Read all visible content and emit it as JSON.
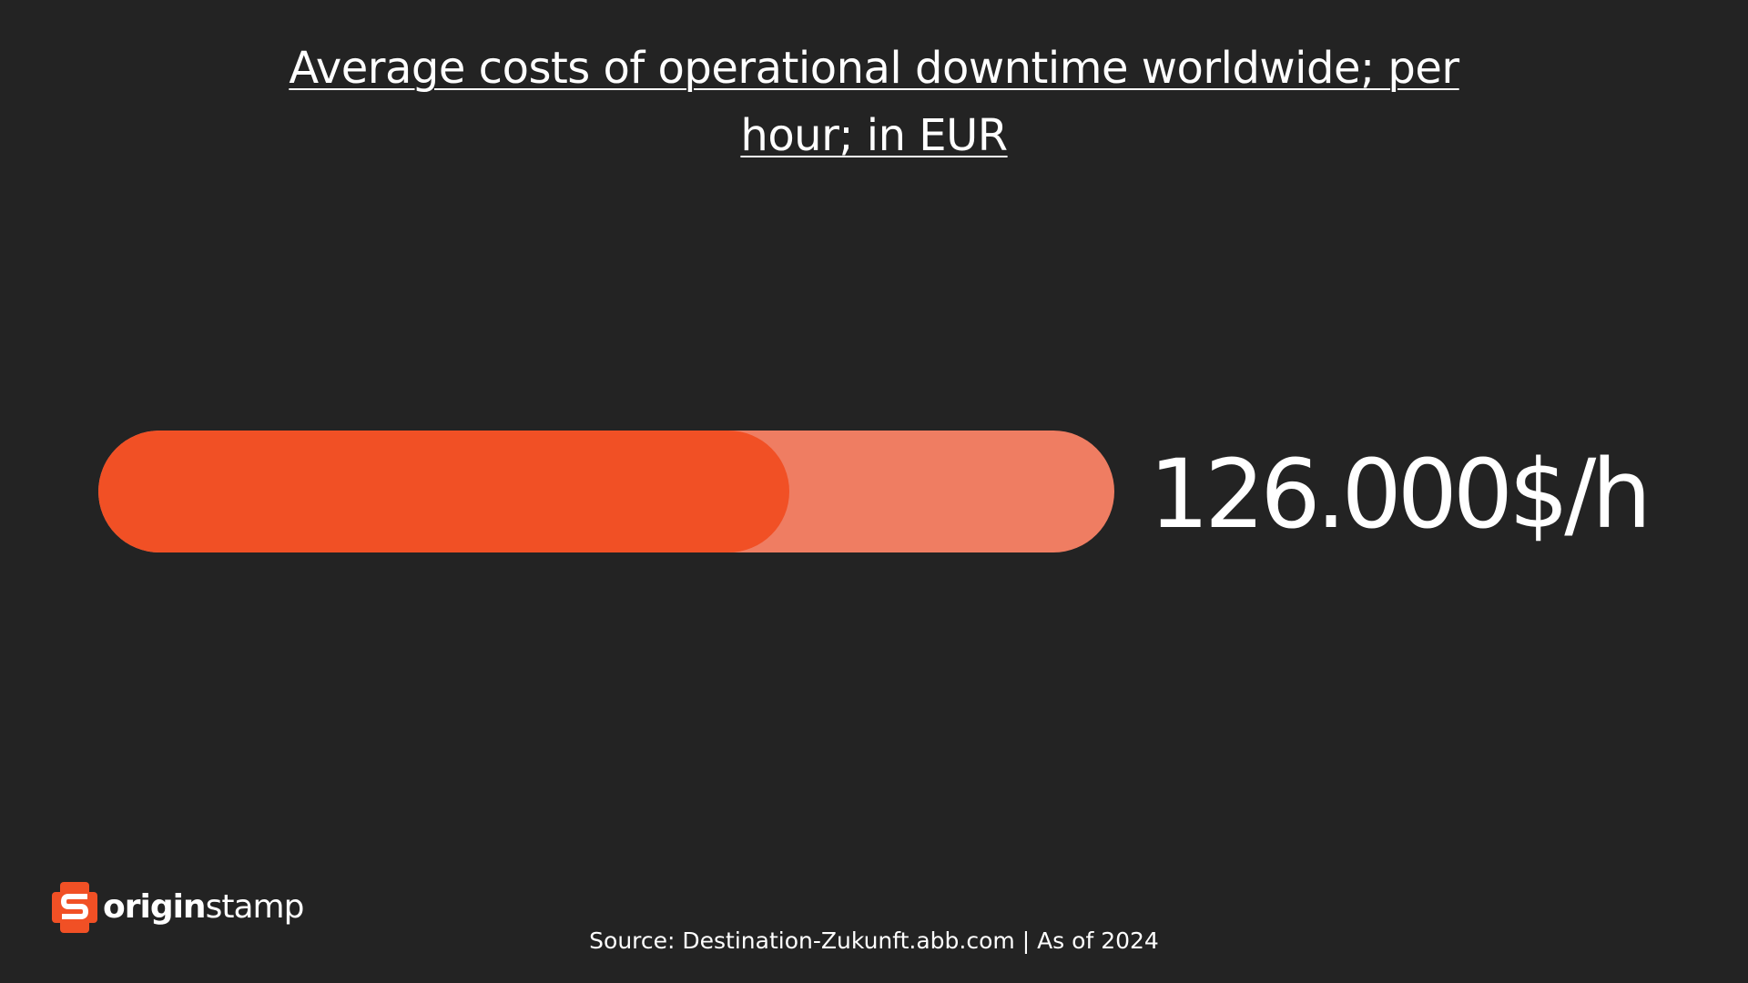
{
  "chart_data": {
    "type": "bar",
    "title": "Average costs of operational downtime worldwide; per hour; in EUR",
    "categories": [
      ""
    ],
    "values": [
      126000
    ],
    "value_label": "126.000$/h",
    "fill_fraction": 0.68,
    "grid": false,
    "legend": "none"
  },
  "colors": {
    "background": "#232323",
    "bar_fill": "#f15025",
    "bar_track": "#ef7d62",
    "text": "#ffffff"
  },
  "logo": {
    "text_bold": "origin",
    "text_regular": "stamp",
    "icon": "originstamp-s-logo-icon"
  },
  "source": "Source: Destination-Zukunft.abb.com | As of 2024"
}
